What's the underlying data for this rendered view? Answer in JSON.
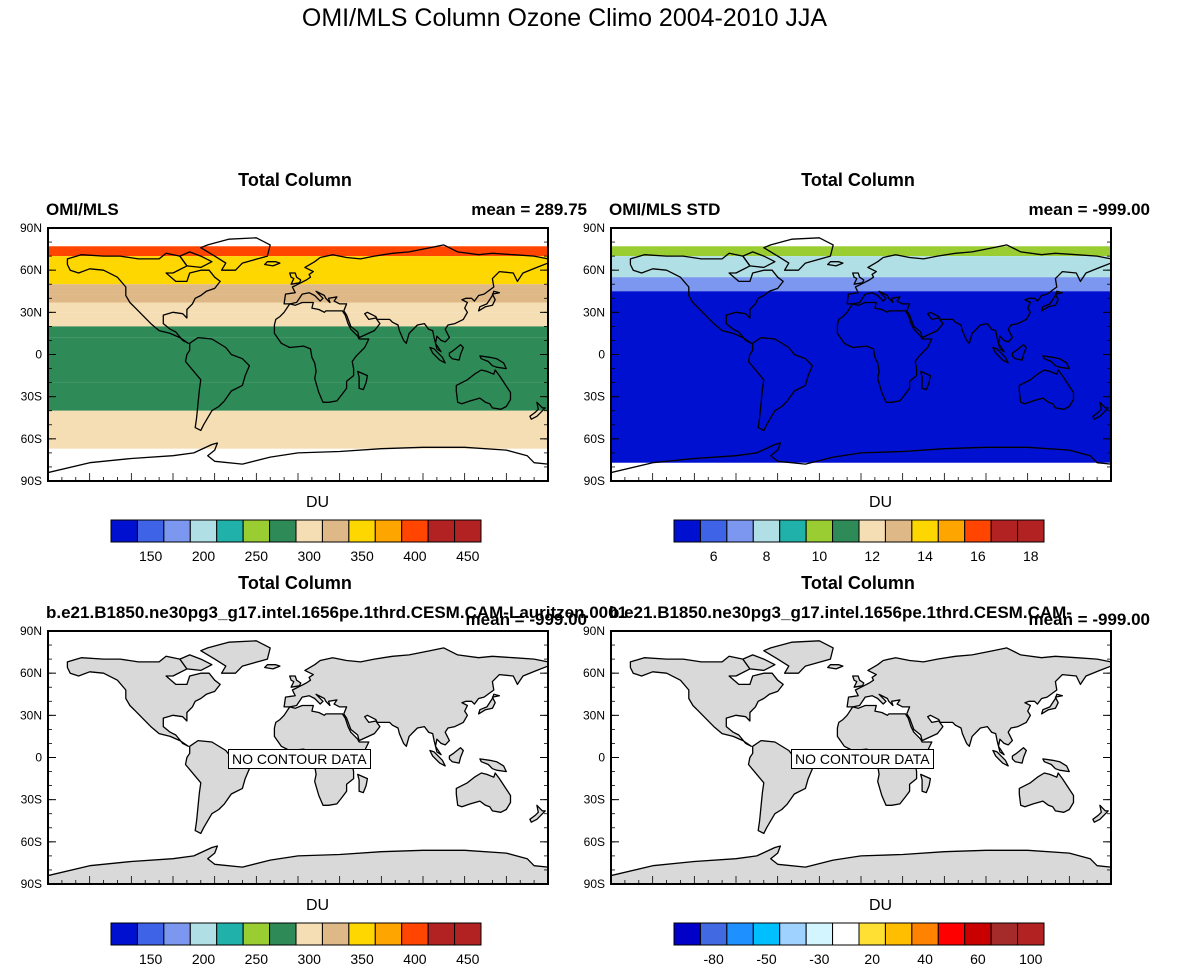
{
  "figure": {
    "title": "OMI/MLS Column Ozone Climo 2004-2010 JJA"
  },
  "colors": {
    "du_scale": [
      "#0010d0",
      "#3f63e6",
      "#7b97ef",
      "#b0e0e6",
      "#20b2aa",
      "#9acd32",
      "#2e8b57",
      "#f5deb3",
      "#deb887",
      "#ffd700",
      "#ffa500",
      "#ff4500",
      "#b22222",
      "#b22222"
    ],
    "diff_scale": [
      "#0000c8",
      "#4169e1",
      "#1e90ff",
      "#00bfff",
      "#a0d2ff",
      "#d2f5ff",
      "#ffffff",
      "#ffe033",
      "#ffbe00",
      "#ff8200",
      "#ff0000",
      "#c80000",
      "#a52a2a",
      "#b22222"
    ],
    "land": "#d9d9d9"
  },
  "chart_data": [
    {
      "type": "heatmap",
      "panel": "top-left",
      "title": "Total Column",
      "left_string": "OMI/MLS",
      "right_string": "mean = 289.75",
      "y_ticks": [
        "90N",
        "60N",
        "30N",
        "0",
        "30S",
        "60S",
        "90S"
      ],
      "ylim": [
        -90,
        90
      ],
      "xlim": [
        -180,
        180
      ],
      "colorbar_title": "DU",
      "colorbar_levels": [
        "150",
        "200",
        "250",
        "300",
        "350",
        "400",
        "450"
      ],
      "zonal_bands": [
        {
          "lat_from": 70,
          "lat_to": 77,
          "value": 400
        },
        {
          "lat_from": 50,
          "lat_to": 70,
          "value": 370
        },
        {
          "lat_from": 43,
          "lat_to": 50,
          "value": 345
        },
        {
          "lat_from": 37,
          "lat_to": 43,
          "value": 330
        },
        {
          "lat_from": 30,
          "lat_to": 37,
          "value": 315
        },
        {
          "lat_from": 20,
          "lat_to": 30,
          "value": 300
        },
        {
          "lat_from": 12,
          "lat_to": 20,
          "value": 285
        },
        {
          "lat_from": -20,
          "lat_to": 12,
          "value": 275
        },
        {
          "lat_from": -40,
          "lat_to": -20,
          "value": 290
        },
        {
          "lat_from": -67,
          "lat_to": -40,
          "value": 300
        }
      ],
      "missing_below_lat": -67
    },
    {
      "type": "heatmap",
      "panel": "top-right",
      "title": "Total Column",
      "left_string": "OMI/MLS STD",
      "right_string": "mean = -999.00",
      "y_ticks": [
        "90N",
        "60N",
        "30N",
        "0",
        "30S",
        "60S",
        "90S"
      ],
      "ylim": [
        -90,
        90
      ],
      "xlim": [
        -180,
        180
      ],
      "colorbar_title": "DU",
      "colorbar_levels": [
        "6",
        "8",
        "10",
        "12",
        "14",
        "16",
        "18"
      ],
      "zonal_bands": [
        {
          "lat_from": 70,
          "lat_to": 77,
          "value": 10
        },
        {
          "lat_from": 55,
          "lat_to": 70,
          "value": 8
        },
        {
          "lat_from": 45,
          "lat_to": 55,
          "value": 7
        },
        {
          "lat_from": -77,
          "lat_to": 45,
          "value": 5
        }
      ]
    },
    {
      "type": "heatmap",
      "panel": "bottom-left",
      "title": "Total Column",
      "left_string": "b.e21.B1850.ne30pg3_g17.intel.1656pe.1thrd.CESM.CAM-Lauritzen.0001",
      "right_string": "mean = -999.00",
      "y_ticks": [
        "90N",
        "60N",
        "30N",
        "0",
        "30S",
        "60S",
        "90S"
      ],
      "ylim": [
        -90,
        90
      ],
      "xlim": [
        -180,
        180
      ],
      "annotation": "NO CONTOUR DATA",
      "colorbar_title": "DU",
      "colorbar_levels": [
        "150",
        "200",
        "250",
        "300",
        "350",
        "400",
        "450"
      ]
    },
    {
      "type": "heatmap",
      "panel": "bottom-right",
      "title": "Total Column",
      "left_string": "b.e21.B1850.ne30pg3_g17.intel.1656pe.1thrd.CESM.CAM-",
      "right_string": "mean = -999.00",
      "y_ticks": [
        "90N",
        "60N",
        "30N",
        "0",
        "30S",
        "60S",
        "90S"
      ],
      "ylim": [
        -90,
        90
      ],
      "xlim": [
        -180,
        180
      ],
      "annotation": "NO CONTOUR DATA",
      "colorbar_title": "DU",
      "colorbar_levels": [
        "-80",
        "-50",
        "-30",
        "20",
        "40",
        "60",
        "100"
      ]
    }
  ]
}
